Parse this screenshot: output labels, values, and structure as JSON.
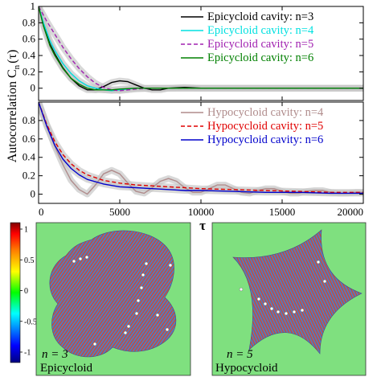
{
  "chart_data": [
    {
      "type": "line",
      "panel": "top",
      "ylabel_main": "Autocorrelation C",
      "ylabel_sub": "n",
      "ylabel_arg": "(τ)",
      "xlim": [
        0,
        20000
      ],
      "ylim": [
        -0.15,
        1.0
      ],
      "yticks": [
        "0",
        "0.2",
        "0.4",
        "0.6",
        "0.8",
        "1"
      ],
      "uncertainty_band": true,
      "legend_position": "top-right",
      "series": [
        {
          "name": "Epicycloid cavity: n=3",
          "color": "#000000",
          "dash": "solid",
          "x": [
            0,
            300,
            700,
            1000,
            1500,
            2000,
            2500,
            3000,
            3500,
            4000,
            4500,
            5000,
            5500,
            6000,
            6500,
            7000,
            7500,
            8000,
            9000,
            10000,
            12000,
            14000,
            16000,
            18000,
            20000
          ],
          "y": [
            1.0,
            0.78,
            0.54,
            0.42,
            0.25,
            0.12,
            0.03,
            -0.02,
            -0.02,
            0.02,
            0.07,
            0.09,
            0.08,
            0.04,
            0.0,
            -0.02,
            -0.02,
            0.0,
            0.01,
            0.0,
            0.0,
            0.0,
            0.0,
            0.0,
            0.0
          ]
        },
        {
          "name": "Epicycloid cavity: n=4",
          "color": "#00e0e0",
          "dash": "solid",
          "x": [
            0,
            300,
            700,
            1000,
            1500,
            2000,
            2500,
            3000,
            3500,
            4000,
            4500,
            5000,
            5500,
            6000,
            7000,
            8000,
            10000,
            12000,
            14000,
            16000,
            18000,
            20000
          ],
          "y": [
            1.0,
            0.8,
            0.58,
            0.46,
            0.3,
            0.18,
            0.09,
            0.03,
            0.0,
            -0.02,
            -0.03,
            -0.02,
            -0.01,
            0.0,
            0.0,
            0.0,
            0.0,
            0.0,
            0.0,
            0.0,
            0.0,
            0.0
          ]
        },
        {
          "name": "Epicycloid cavity: n=5",
          "color": "#a020b0",
          "dash": "dashed",
          "x": [
            0,
            500,
            1000,
            1500,
            2000,
            2500,
            3000,
            3500,
            4000,
            4500,
            5000,
            5500,
            6000,
            7000,
            8000,
            10000,
            12000,
            14000,
            16000,
            18000,
            20000
          ],
          "y": [
            1.0,
            0.82,
            0.66,
            0.5,
            0.36,
            0.24,
            0.14,
            0.06,
            0.01,
            -0.02,
            -0.03,
            -0.02,
            -0.01,
            0.0,
            0.0,
            0.0,
            0.0,
            0.0,
            0.0,
            0.0,
            0.0
          ]
        },
        {
          "name": "Epicycloid cavity: n=6",
          "color": "#008000",
          "dash": "solid",
          "x": [
            0,
            300,
            700,
            1000,
            1500,
            2000,
            2500,
            3000,
            3500,
            4000,
            4500,
            5000,
            6000,
            7000,
            8000,
            10000,
            12000,
            14000,
            16000,
            18000,
            20000
          ],
          "y": [
            1.0,
            0.76,
            0.52,
            0.4,
            0.24,
            0.12,
            0.05,
            0.0,
            -0.02,
            -0.02,
            -0.02,
            -0.01,
            0.0,
            0.0,
            0.0,
            0.0,
            0.0,
            0.0,
            0.0,
            0.0,
            0.0
          ]
        }
      ]
    },
    {
      "type": "line",
      "panel": "bottom",
      "xlabel": "τ",
      "xlim": [
        0,
        20000
      ],
      "ylim": [
        -0.1,
        1.0
      ],
      "xticks": [
        "0",
        "5000",
        "10000",
        "15000",
        "20000"
      ],
      "yticks": [
        "0",
        "0.2",
        "0.4",
        "0.6",
        "0.8"
      ],
      "uncertainty_band": true,
      "legend_position": "top-right",
      "series": [
        {
          "name": "Hypocycloid cavity: n=4",
          "color": "#b08c8c",
          "dash": "solid",
          "x": [
            0,
            500,
            1000,
            1500,
            2000,
            2500,
            3000,
            3500,
            4000,
            4500,
            5000,
            5500,
            6000,
            6500,
            7000,
            7500,
            8000,
            8500,
            9000,
            9500,
            10000,
            10500,
            11000,
            11500,
            12000,
            12500,
            13000,
            13500,
            14000,
            14500,
            15000,
            15500,
            16000,
            16500,
            17000,
            17500,
            18000,
            18500,
            19000,
            19500,
            20000
          ],
          "y": [
            1.0,
            0.75,
            0.52,
            0.32,
            0.15,
            0.05,
            0.0,
            0.1,
            0.22,
            0.26,
            0.22,
            0.12,
            0.03,
            0.01,
            0.07,
            0.14,
            0.17,
            0.14,
            0.07,
            0.02,
            0.02,
            0.06,
            0.1,
            0.1,
            0.06,
            0.02,
            0.01,
            0.04,
            0.06,
            0.06,
            0.03,
            0.01,
            0.01,
            0.03,
            0.04,
            0.04,
            0.02,
            0.01,
            0.01,
            0.02,
            0.02
          ]
        },
        {
          "name": "Hypocycloid cavity: n=5",
          "color": "#e00000",
          "dash": "dashed",
          "x": [
            0,
            500,
            1000,
            1500,
            2000,
            2500,
            3000,
            4000,
            5000,
            6000,
            7000,
            8000,
            9000,
            10000,
            12000,
            14000,
            16000,
            18000,
            20000
          ],
          "y": [
            1.0,
            0.76,
            0.57,
            0.43,
            0.33,
            0.26,
            0.21,
            0.15,
            0.12,
            0.1,
            0.09,
            0.08,
            0.07,
            0.06,
            0.05,
            0.04,
            0.03,
            0.02,
            0.02
          ]
        },
        {
          "name": "Hypocycloid cavity: n=6",
          "color": "#0000cc",
          "dash": "solid",
          "x": [
            0,
            500,
            1000,
            1500,
            2000,
            2500,
            3000,
            4000,
            5000,
            6000,
            7000,
            8000,
            9000,
            10000,
            12000,
            14000,
            16000,
            18000,
            20000
          ],
          "y": [
            1.0,
            0.74,
            0.53,
            0.38,
            0.28,
            0.21,
            0.16,
            0.11,
            0.08,
            0.07,
            0.06,
            0.05,
            0.04,
            0.04,
            0.03,
            0.02,
            0.02,
            0.01,
            0.01
          ]
        }
      ]
    },
    {
      "type": "heatmap",
      "panel": "colorbar",
      "colorbar_ticks": [
        "1",
        "0.5",
        "0",
        "-0.5",
        "-1"
      ],
      "colormap": [
        "#000080",
        "#0000ff",
        "#00ffff",
        "#00ff00",
        "#ffff00",
        "#ff8000",
        "#ff0000",
        "#800000"
      ],
      "background_color": "#7fe07f"
    },
    {
      "type": "heatmap",
      "panel": "epicycloid-image",
      "label_n": "n = 3",
      "label_name": "Epicycloid",
      "background_color": "#7fe07f",
      "stripe_colors": [
        "#c8483c",
        "#4a78c8"
      ]
    },
    {
      "type": "heatmap",
      "panel": "hypocycloid-image",
      "label_n": "n = 5",
      "label_name": "Hypocycloid",
      "background_color": "#7fe07f",
      "stripe_colors": [
        "#c8483c",
        "#4a78c8"
      ]
    }
  ]
}
